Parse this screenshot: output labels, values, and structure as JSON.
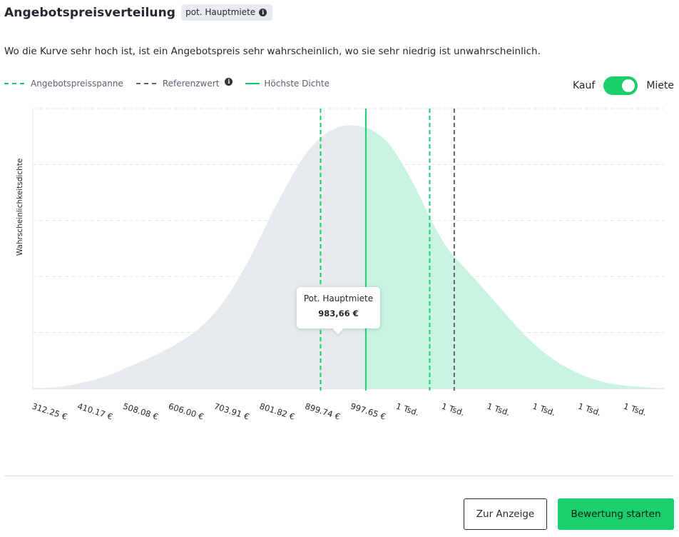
{
  "header": {
    "title": "Angebotspreisverteilung",
    "badge": "pot. Hauptmiete"
  },
  "description": "Wo die Kurve sehr hoch ist, ist ein Angebotspreis sehr wahrscheinlich, wo sie sehr niedrig ist unwahrscheinlich.",
  "legend": {
    "range": "Angebotspreisspanne",
    "reference": "Referenzwert",
    "peak": "Höchste Dichte"
  },
  "toggle": {
    "left": "Kauf",
    "right": "Miete",
    "selected": "Miete"
  },
  "tooltip": {
    "label": "Pot. Hauptmiete",
    "value": "983,66 €"
  },
  "buttons": {
    "secondary": "Zur Anzeige",
    "primary": "Bewertung starten"
  },
  "colors": {
    "accent": "#19cf6b",
    "area_left": "#e6ecee",
    "area_right": "#c9f4e2",
    "reference_line": "#5d6670"
  },
  "chart_data": {
    "type": "area",
    "ylabel": "Wahrscheinlichkeitsdichte",
    "xlabel": "",
    "tick_labels": [
      "312.25 €",
      "410.17 €",
      "508.08 €",
      "606.00 €",
      "703.91 €",
      "801.82 €",
      "899.74 €",
      "997.65 €",
      "1 Tsd.",
      "1 Tsd.",
      "1 Tsd.",
      "1 Tsd.",
      "1 Tsd.",
      "1 Tsd."
    ],
    "xlim": [
      312.25,
      1585
    ],
    "ylim": [
      0,
      1
    ],
    "grid": true,
    "series": [
      {
        "x": [
          312.25,
          360,
          410,
          460,
          508,
          560,
          606,
          650,
          700,
          750,
          800,
          850,
          880,
          910,
          940,
          965,
          983.66,
          1000,
          1030,
          1060,
          1090,
          1120,
          1150,
          1180,
          1210,
          1250,
          1300,
          1350,
          1400,
          1450,
          1500,
          1560,
          1585
        ],
        "y": [
          0.0,
          0.005,
          0.02,
          0.045,
          0.08,
          0.12,
          0.165,
          0.22,
          0.32,
          0.47,
          0.65,
          0.81,
          0.88,
          0.925,
          0.945,
          0.945,
          0.938,
          0.925,
          0.88,
          0.8,
          0.7,
          0.59,
          0.5,
          0.44,
          0.38,
          0.3,
          0.2,
          0.12,
          0.065,
          0.03,
          0.012,
          0.003,
          0.0
        ]
      }
    ],
    "range_low": 892.5,
    "range_high": 1112.5,
    "peak": 983.66,
    "reference": 1162
  }
}
